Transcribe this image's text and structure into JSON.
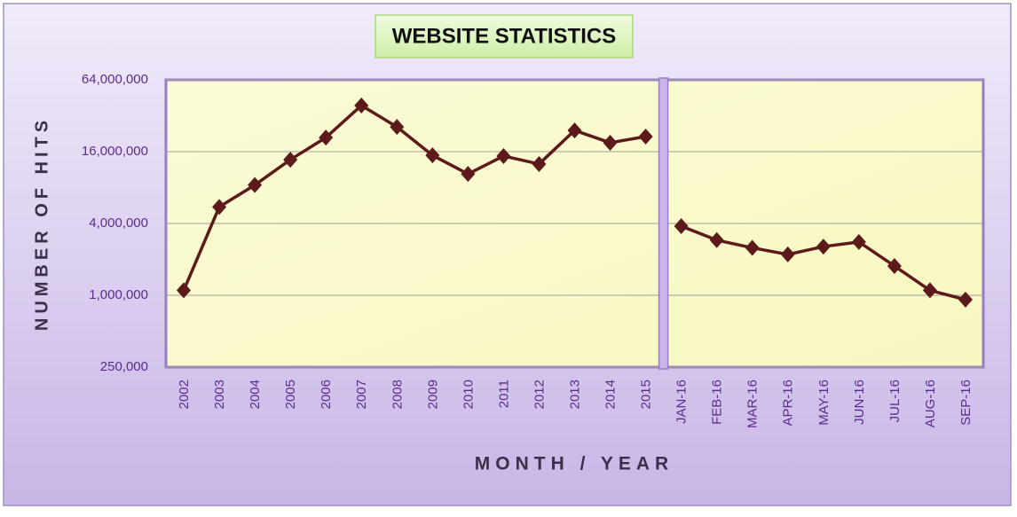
{
  "chart_data": {
    "type": "line",
    "title": "WEBSITE STATISTICS",
    "x_label": "MONTH / YEAR",
    "y_label": "NUMBER OF HITS",
    "categories": [
      "2002",
      "2003",
      "2004",
      "2005",
      "2006",
      "2007",
      "2008",
      "2009",
      "2010",
      "2011",
      "2012",
      "2013",
      "2014",
      "2015",
      "JAN-16",
      "FEB-16",
      "MAR-16",
      "APR-16",
      "MAY-16",
      "JUN-16",
      "JUL-16",
      "AUG-16",
      "SEP-16"
    ],
    "series": [
      {
        "color": "#5c1a1a",
        "values": [
          1100000,
          5500000,
          8400000,
          13700000,
          21000000,
          39000000,
          25800000,
          14900000,
          10400000,
          14700000,
          12600000,
          24100000,
          19000000,
          21400000,
          null,
          null,
          null,
          null,
          null,
          null,
          null,
          null,
          null
        ]
      },
      {
        "color": "#5c1a1a",
        "values": [
          null,
          null,
          null,
          null,
          null,
          null,
          null,
          null,
          null,
          null,
          null,
          null,
          null,
          null,
          3800000,
          2900000,
          2500000,
          2200000,
          2560000,
          2800000,
          1760000,
          1100000,
          920000
        ]
      }
    ],
    "log_scale": true,
    "grid": true,
    "ylim": [
      250000,
      64000000
    ],
    "yticks": [
      {
        "value": 250000,
        "label": "250,000"
      },
      {
        "value": 1000000,
        "label": "1,000,000"
      },
      {
        "value": 4000000,
        "label": "4,000,000"
      },
      {
        "value": 16000000,
        "label": "16,000,000"
      },
      {
        "value": 64000000,
        "label": "64,000,000"
      }
    ]
  }
}
